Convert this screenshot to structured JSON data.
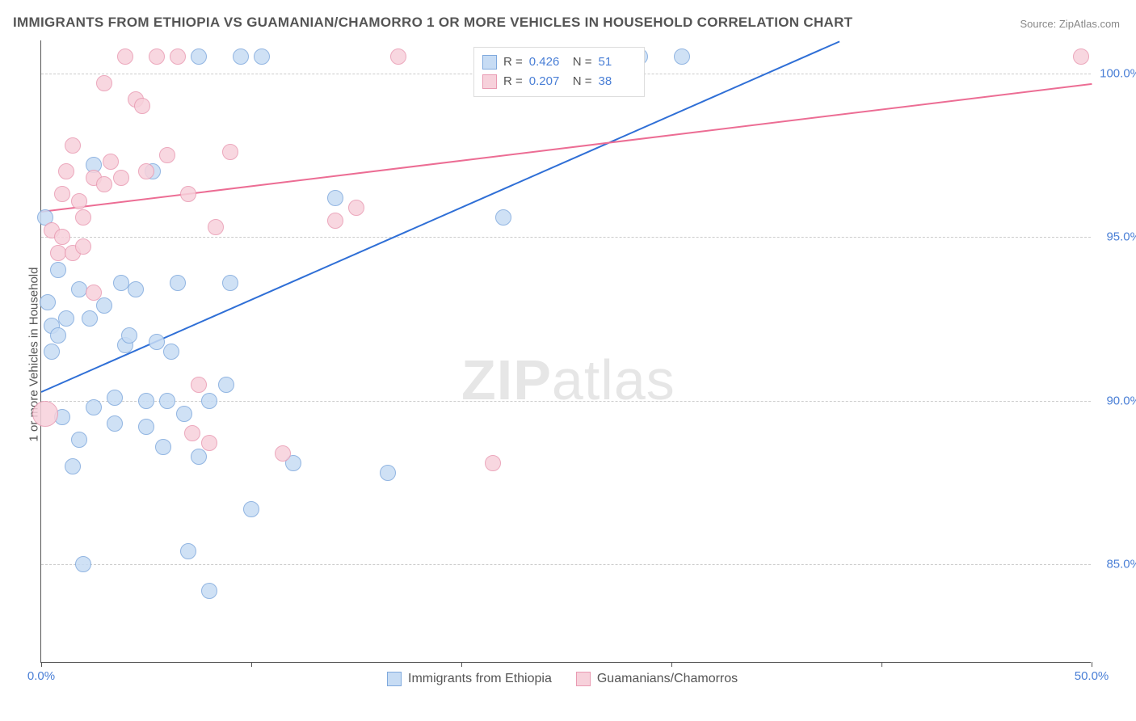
{
  "title": "IMMIGRANTS FROM ETHIOPIA VS GUAMANIAN/CHAMORRO 1 OR MORE VEHICLES IN HOUSEHOLD CORRELATION CHART",
  "source": "Source: ZipAtlas.com",
  "yaxis_label": "1 or more Vehicles in Household",
  "watermark_bold": "ZIP",
  "watermark_light": "atlas",
  "chart": {
    "type": "scatter",
    "xlim": [
      0,
      50
    ],
    "ylim": [
      82,
      101
    ],
    "xticks": [
      0,
      10,
      20,
      30,
      40,
      50
    ],
    "xtick_labels": [
      "0.0%",
      "",
      "",
      "",
      "",
      "50.0%"
    ],
    "yticks": [
      85,
      90,
      95,
      100
    ],
    "ytick_labels": [
      "85.0%",
      "90.0%",
      "95.0%",
      "100.0%"
    ],
    "grid_color": "#cccccc",
    "background_color": "#ffffff",
    "marker_radius": 10,
    "series": [
      {
        "name": "Immigrants from Ethiopia",
        "fill": "#c7dcf4",
        "stroke": "#7fa9dd",
        "r_value": "0.426",
        "n_value": "51",
        "trend": {
          "x1": 0,
          "y1": 90.3,
          "x2": 38,
          "y2": 101,
          "color": "#2f6fd6"
        },
        "points": [
          [
            0.2,
            95.6
          ],
          [
            0.3,
            93.0
          ],
          [
            0.5,
            92.3
          ],
          [
            0.5,
            91.5
          ],
          [
            0.8,
            92.0
          ],
          [
            0.8,
            94.0
          ],
          [
            1.0,
            89.5
          ],
          [
            1.2,
            92.5
          ],
          [
            1.5,
            88.0
          ],
          [
            1.8,
            93.4
          ],
          [
            1.8,
            88.8
          ],
          [
            2.0,
            85.0
          ],
          [
            2.3,
            92.5
          ],
          [
            2.5,
            89.8
          ],
          [
            2.5,
            97.2
          ],
          [
            3.0,
            92.9
          ],
          [
            3.5,
            90.1
          ],
          [
            3.5,
            89.3
          ],
          [
            3.8,
            93.6
          ],
          [
            4.0,
            91.7
          ],
          [
            4.2,
            92.0
          ],
          [
            4.5,
            93.4
          ],
          [
            5.0,
            89.2
          ],
          [
            5.0,
            90.0
          ],
          [
            5.3,
            97.0
          ],
          [
            5.5,
            91.8
          ],
          [
            5.8,
            88.6
          ],
          [
            6.0,
            90.0
          ],
          [
            6.2,
            91.5
          ],
          [
            6.5,
            93.6
          ],
          [
            6.8,
            89.6
          ],
          [
            7.0,
            85.4
          ],
          [
            7.5,
            88.3
          ],
          [
            7.5,
            100.5
          ],
          [
            8.0,
            90.0
          ],
          [
            8.0,
            84.2
          ],
          [
            8.8,
            90.5
          ],
          [
            9.0,
            93.6
          ],
          [
            9.5,
            100.5
          ],
          [
            10.0,
            86.7
          ],
          [
            10.5,
            100.5
          ],
          [
            12.0,
            88.1
          ],
          [
            14.0,
            96.2
          ],
          [
            16.5,
            87.8
          ],
          [
            22.0,
            95.6
          ],
          [
            28.5,
            100.5
          ],
          [
            30.5,
            100.5
          ]
        ]
      },
      {
        "name": "Guamanians/Chamorros",
        "fill": "#f7d1db",
        "stroke": "#e99ab2",
        "r_value": "0.207",
        "n_value": "38",
        "trend": {
          "x1": 0,
          "y1": 95.8,
          "x2": 50,
          "y2": 99.7,
          "color": "#ec6d94"
        },
        "points": [
          [
            0.2,
            89.6,
            16
          ],
          [
            0.5,
            95.2
          ],
          [
            0.8,
            94.5
          ],
          [
            1.0,
            96.3
          ],
          [
            1.0,
            95.0
          ],
          [
            1.2,
            97.0
          ],
          [
            1.5,
            94.5
          ],
          [
            1.5,
            97.8
          ],
          [
            1.8,
            96.1
          ],
          [
            2.0,
            95.6
          ],
          [
            2.0,
            94.7
          ],
          [
            2.5,
            96.8
          ],
          [
            2.5,
            93.3
          ],
          [
            3.0,
            99.7
          ],
          [
            3.0,
            96.6
          ],
          [
            3.3,
            97.3
          ],
          [
            3.8,
            96.8
          ],
          [
            4.0,
            100.5
          ],
          [
            4.5,
            99.2
          ],
          [
            4.8,
            99.0
          ],
          [
            5.0,
            97.0
          ],
          [
            5.5,
            100.5
          ],
          [
            6.0,
            97.5
          ],
          [
            6.5,
            100.5
          ],
          [
            7.0,
            96.3
          ],
          [
            7.2,
            89.0
          ],
          [
            7.5,
            90.5
          ],
          [
            8.0,
            88.7
          ],
          [
            8.3,
            95.3
          ],
          [
            9.0,
            97.6
          ],
          [
            11.5,
            88.4
          ],
          [
            14.0,
            95.5
          ],
          [
            15.0,
            95.9
          ],
          [
            17.0,
            100.5
          ],
          [
            21.5,
            88.1
          ],
          [
            49.5,
            100.5
          ]
        ]
      }
    ],
    "legend_top": {
      "r_label": "R =",
      "n_label": "N ="
    },
    "legend_bottom": [
      {
        "label": "Immigrants from Ethiopia",
        "fill": "#c7dcf4",
        "stroke": "#7fa9dd"
      },
      {
        "label": "Guamanians/Chamorros",
        "fill": "#f7d1db",
        "stroke": "#e99ab2"
      }
    ]
  }
}
